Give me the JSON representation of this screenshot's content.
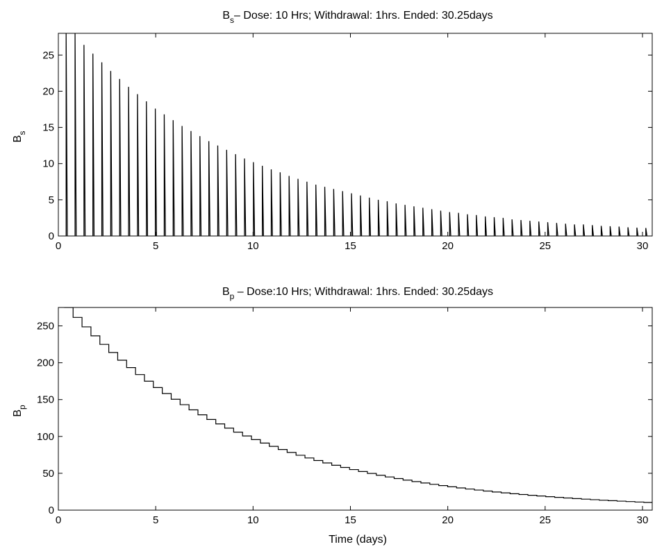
{
  "chart_data": [
    {
      "type": "line",
      "title_main": "B",
      "title_sub": "s",
      "title_rest": "– Dose: 10 Hrs; Withdrawal: 1hrs. Ended: 30.25days",
      "xlabel": "",
      "ylabel_main": "B",
      "ylabel_sub": "s",
      "xlim": [
        0,
        30.5
      ],
      "ylim": [
        0,
        28
      ],
      "xticks": [
        0,
        5,
        10,
        15,
        20,
        25,
        30
      ],
      "yticks": [
        0,
        5,
        10,
        15,
        20,
        25
      ],
      "grid": false,
      "series": [
        {
          "dose_period_days": 0.458,
          "first_spike_day": 0.4,
          "spike_width_days": 0.06,
          "spike_peaks": [
            28,
            28,
            26.4,
            25.2,
            24.0,
            22.8,
            21.7,
            20.6,
            19.6,
            18.6,
            17.6,
            16.8,
            16.0,
            15.2,
            14.5,
            13.8,
            13.1,
            12.5,
            11.9,
            11.3,
            10.7,
            10.2,
            9.7,
            9.2,
            8.8,
            8.3,
            7.9,
            7.5,
            7.1,
            6.8,
            6.5,
            6.2,
            5.9,
            5.6,
            5.3,
            5.0,
            4.8,
            4.5,
            4.3,
            4.1,
            3.9,
            3.7,
            3.5,
            3.3,
            3.2,
            3.0,
            2.9,
            2.7,
            2.6,
            2.5,
            2.3,
            2.2,
            2.1,
            2.0,
            1.9,
            1.8,
            1.7,
            1.6,
            1.6,
            1.5,
            1.4,
            1.35,
            1.3,
            1.2,
            1.15,
            1.1
          ]
        }
      ]
    },
    {
      "type": "line",
      "title_main": "B",
      "title_sub": "p",
      "title_rest": " – Dose:10 Hrs; Withdrawal: 1hrs. Ended: 30.25days",
      "xlabel": "Time (days)",
      "ylabel_main": "B",
      "ylabel_sub": "p",
      "xlim": [
        0,
        30.5
      ],
      "ylim": [
        0,
        275
      ],
      "xticks": [
        0,
        5,
        10,
        15,
        20,
        25,
        30
      ],
      "yticks": [
        0,
        50,
        100,
        150,
        200,
        250
      ],
      "grid": false,
      "series": [
        {
          "step_period_days": 0.458,
          "start_value": 275,
          "end_value": 10,
          "x_start": 0.3,
          "x_end": 30.5
        }
      ]
    }
  ]
}
